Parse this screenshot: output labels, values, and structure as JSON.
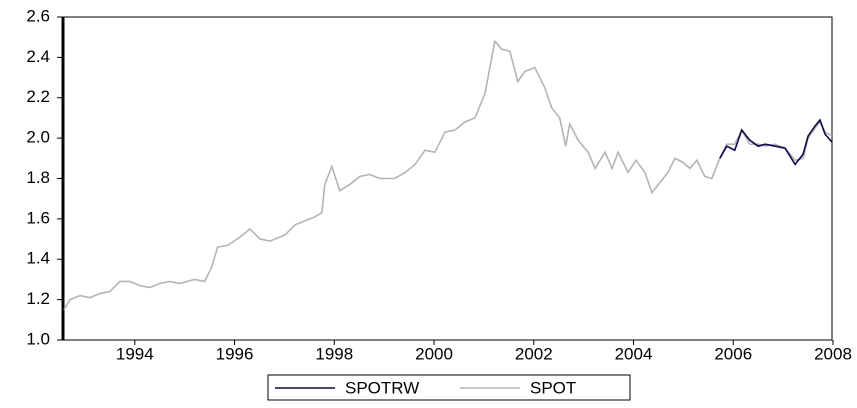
{
  "chart_data": {
    "type": "line",
    "x": [
      1992.58,
      1992.7,
      1992.9,
      1993.1,
      1993.3,
      1993.5,
      1993.7,
      1993.9,
      1994.1,
      1994.3,
      1994.5,
      1994.7,
      1994.9,
      1995.2,
      1995.4,
      1995.54,
      1995.66,
      1995.87,
      1996.11,
      1996.31,
      1996.51,
      1996.71,
      1997.01,
      1997.21,
      1997.41,
      1997.61,
      1997.75,
      1997.81,
      1997.95,
      1998.11,
      1998.31,
      1998.51,
      1998.71,
      1998.91,
      1999.21,
      1999.42,
      1999.62,
      1999.82,
      2000.02,
      2000.22,
      2000.42,
      2000.62,
      2000.82,
      2001.02,
      2001.22,
      2001.36,
      2001.52,
      2001.68,
      2001.82,
      2002.02,
      2002.22,
      2002.36,
      2002.52,
      2002.64,
      2002.72,
      2002.89,
      2003.09,
      2003.23,
      2003.43,
      2003.57,
      2003.69,
      2003.89,
      2004.05,
      2004.23,
      2004.37,
      2004.53,
      2004.69,
      2004.83,
      2004.99,
      2005.13,
      2005.27,
      2005.43,
      2005.57,
      2005.73,
      2005.87,
      2006.03,
      2006.17,
      2006.33,
      2006.5,
      2006.64,
      2006.84,
      2007.04,
      2007.24,
      2007.4,
      2007.5,
      2007.64,
      2007.74,
      2007.84,
      2007.98
    ],
    "series": [
      {
        "name": "SPOTRW",
        "color": "#0a0a4a",
        "values": [
          null,
          null,
          null,
          null,
          null,
          null,
          null,
          null,
          null,
          null,
          null,
          null,
          null,
          null,
          null,
          null,
          null,
          null,
          null,
          null,
          null,
          null,
          null,
          null,
          null,
          null,
          null,
          null,
          null,
          null,
          null,
          null,
          null,
          null,
          null,
          null,
          null,
          null,
          null,
          null,
          null,
          null,
          null,
          null,
          null,
          null,
          null,
          null,
          null,
          null,
          null,
          null,
          null,
          null,
          null,
          null,
          null,
          null,
          null,
          null,
          null,
          null,
          null,
          null,
          null,
          null,
          null,
          null,
          null,
          null,
          null,
          null,
          null,
          1.9,
          1.96,
          1.94,
          2.04,
          1.99,
          1.96,
          1.97,
          1.96,
          1.95,
          1.87,
          1.92,
          2.01,
          2.06,
          2.09,
          2.02,
          1.98
        ]
      },
      {
        "name": "SPOT",
        "color": "#b4b4b4",
        "values": [
          1.15,
          1.2,
          1.22,
          1.21,
          1.23,
          1.24,
          1.29,
          1.29,
          1.27,
          1.26,
          1.28,
          1.29,
          1.28,
          1.3,
          1.29,
          1.36,
          1.46,
          1.47,
          1.51,
          1.55,
          1.5,
          1.49,
          1.52,
          1.57,
          1.59,
          1.61,
          1.63,
          1.77,
          1.86,
          1.74,
          1.77,
          1.81,
          1.82,
          1.8,
          1.8,
          1.83,
          1.87,
          1.94,
          1.93,
          2.03,
          2.04,
          2.08,
          2.1,
          2.22,
          2.48,
          2.44,
          2.43,
          2.28,
          2.33,
          2.35,
          2.25,
          2.15,
          2.1,
          1.96,
          2.07,
          1.99,
          1.93,
          1.85,
          1.93,
          1.85,
          1.93,
          1.83,
          1.89,
          1.83,
          1.73,
          1.78,
          1.83,
          1.9,
          1.88,
          1.85,
          1.89,
          1.81,
          1.8,
          1.9,
          1.97,
          1.97,
          2.04,
          1.97,
          1.97,
          1.96,
          1.97,
          1.95,
          1.89,
          1.9,
          2.0,
          2.05,
          2.08,
          2.03,
          2.01
        ]
      }
    ],
    "xlim": [
      1992.54,
      2007.98
    ],
    "xticks": [
      1994,
      1996,
      1998,
      2000,
      2002,
      2004,
      2006,
      2008
    ],
    "ylim": [
      1.0,
      2.6
    ],
    "yticks": [
      {
        "value": 1.0,
        "label": "1.0"
      },
      1.2,
      1.4,
      1.6,
      1.8,
      {
        "value": 2.0,
        "label": "2.0"
      },
      2.2,
      2.4,
      2.6
    ],
    "grid": false
  }
}
